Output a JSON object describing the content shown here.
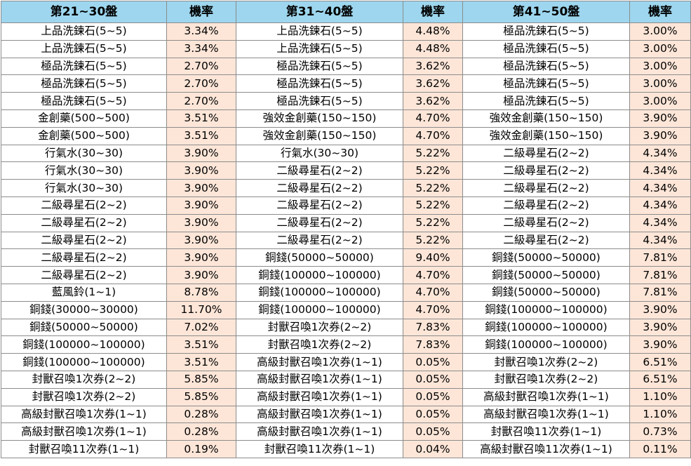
{
  "headers": [
    "第21~30盤",
    "機率",
    "第31~40盤",
    "機率",
    "第41~50盤",
    "機率"
  ],
  "rows": [
    [
      "上品洗鍊石(5~5)",
      "3.34%",
      "上品洗鍊石(5~5)",
      "4.48%",
      "極品洗鍊石(5~5)",
      "3.00%"
    ],
    [
      "上品洗鍊石(5~5)",
      "3.34%",
      "上品洗鍊石(5~5)",
      "4.48%",
      "極品洗鍊石(5~5)",
      "3.00%"
    ],
    [
      "極品洗鍊石(5~5)",
      "2.70%",
      "極品洗鍊石(5~5)",
      "3.62%",
      "極品洗鍊石(5~5)",
      "3.00%"
    ],
    [
      "極品洗鍊石(5~5)",
      "2.70%",
      "極品洗鍊石(5~5)",
      "3.62%",
      "極品洗鍊石(5~5)",
      "3.00%"
    ],
    [
      "極品洗鍊石(5~5)",
      "2.70%",
      "極品洗鍊石(5~5)",
      "3.62%",
      "極品洗鍊石(5~5)",
      "3.00%"
    ],
    [
      "金創藥(500~500)",
      "3.51%",
      "強效金創藥(150~150)",
      "4.70%",
      "強效金創藥(150~150)",
      "3.90%"
    ],
    [
      "金創藥(500~500)",
      "3.51%",
      "強效金創藥(150~150)",
      "4.70%",
      "強效金創藥(150~150)",
      "3.90%"
    ],
    [
      "行氣水(30~30)",
      "3.90%",
      "行氣水(30~30)",
      "5.22%",
      "二級尋星石(2~2)",
      "4.34%"
    ],
    [
      "行氣水(30~30)",
      "3.90%",
      "二級尋星石(2~2)",
      "5.22%",
      "二級尋星石(2~2)",
      "4.34%"
    ],
    [
      "行氣水(30~30)",
      "3.90%",
      "二級尋星石(2~2)",
      "5.22%",
      "二級尋星石(2~2)",
      "4.34%"
    ],
    [
      "二級尋星石(2~2)",
      "3.90%",
      "二級尋星石(2~2)",
      "5.22%",
      "二級尋星石(2~2)",
      "4.34%"
    ],
    [
      "二級尋星石(2~2)",
      "3.90%",
      "二級尋星石(2~2)",
      "5.22%",
      "二級尋星石(2~2)",
      "4.34%"
    ],
    [
      "二級尋星石(2~2)",
      "3.90%",
      "二級尋星石(2~2)",
      "5.22%",
      "二級尋星石(2~2)",
      "4.34%"
    ],
    [
      "二級尋星石(2~2)",
      "3.90%",
      "銅錢(50000~50000)",
      "9.40%",
      "銅錢(50000~50000)",
      "7.81%"
    ],
    [
      "二級尋星石(2~2)",
      "3.90%",
      "銅錢(100000~100000)",
      "4.70%",
      "銅錢(50000~50000)",
      "7.81%"
    ],
    [
      "藍風鈴(1~1)",
      "8.78%",
      "銅錢(100000~100000)",
      "4.70%",
      "銅錢(50000~50000)",
      "7.81%"
    ],
    [
      "銅錢(30000~30000)",
      "11.70%",
      "銅錢(100000~100000)",
      "4.70%",
      "銅錢(100000~100000)",
      "3.90%"
    ],
    [
      "銅錢(50000~50000)",
      "7.02%",
      "封獸召喚1次券(2~2)",
      "7.83%",
      "銅錢(100000~100000)",
      "3.90%"
    ],
    [
      "銅錢(100000~100000)",
      "3.51%",
      "封獸召喚1次券(2~2)",
      "7.83%",
      "銅錢(100000~100000)",
      "3.90%"
    ],
    [
      "銅錢(100000~100000)",
      "3.51%",
      "高級封獸召喚1次券(1~1)",
      "0.05%",
      "封獸召喚1次券(2~2)",
      "6.51%"
    ],
    [
      "封獸召喚1次券(2~2)",
      "5.85%",
      "高級封獸召喚1次券(1~1)",
      "0.05%",
      "封獸召喚1次券(2~2)",
      "6.51%"
    ],
    [
      "封獸召喚1次券(2~2)",
      "5.85%",
      "高級封獸召喚1次券(1~1)",
      "0.05%",
      "高級封獸召喚1次券(1~1)",
      "1.10%"
    ],
    [
      "高級封獸召喚1次券(1~1)",
      "0.28%",
      "高級封獸召喚1次券(1~1)",
      "0.05%",
      "高級封獸召喚1次券(1~1)",
      "1.10%"
    ],
    [
      "高級封獸召喚1次券(1~1)",
      "0.28%",
      "高級封獸召喚1次券(1~1)",
      "0.05%",
      "封獸召喚11次券(1~1)",
      "0.73%"
    ],
    [
      "封獸召喚11次券(1~1)",
      "0.19%",
      "封獸召喚11次券(1~1)",
      "0.04%",
      "高級封獸召喚11次券(1~1)",
      "0.11%"
    ]
  ],
  "colors": {
    "header_bg": "#9dd6ee",
    "rate_bg": "#fde6d8",
    "item_bg": "#ffffff",
    "border": "#8c8c8c"
  }
}
